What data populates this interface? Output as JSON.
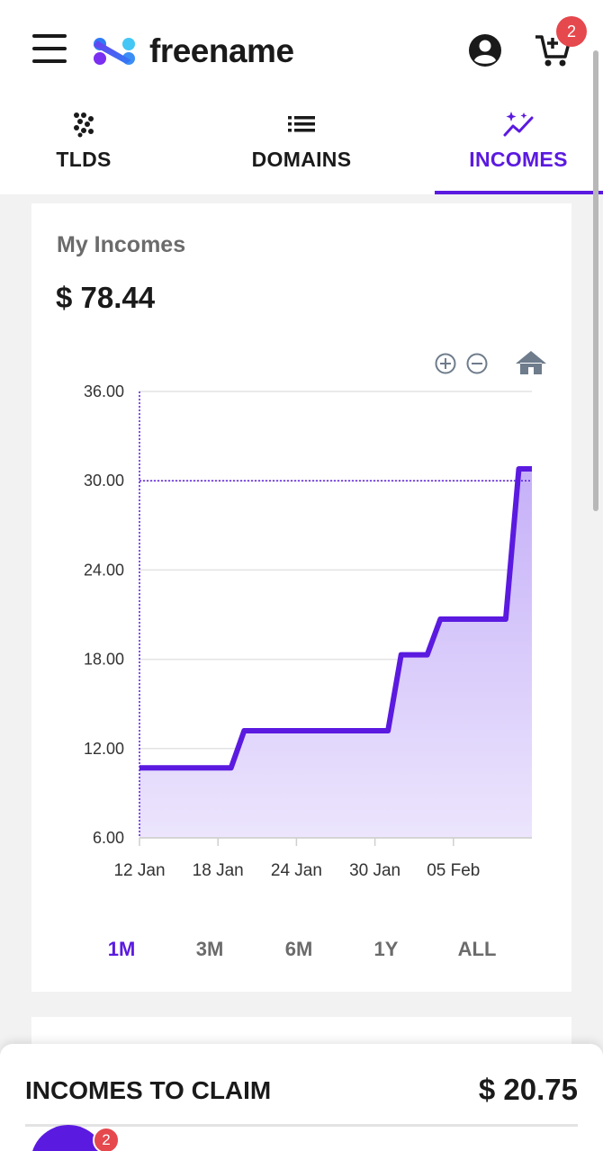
{
  "header": {
    "brand": "freename",
    "cart_count": "2"
  },
  "tabs": [
    {
      "label": "TLDS",
      "icon": "dots-grid-icon",
      "active": false
    },
    {
      "label": "DOMAINS",
      "icon": "list-icon",
      "active": false
    },
    {
      "label": "INCOMES",
      "icon": "sparkle-chart-icon",
      "active": true
    }
  ],
  "incomes": {
    "title": "My Incomes",
    "amount": "$ 78.44"
  },
  "chart_data": {
    "type": "area",
    "title": "",
    "xlabel": "",
    "ylabel": "",
    "ylim": [
      6,
      36
    ],
    "y_ticks": [
      "36.00",
      "30.00",
      "24.00",
      "18.00",
      "12.00",
      "6.00"
    ],
    "x_ticks": [
      "12 Jan",
      "18 Jan",
      "24 Jan",
      "30 Jan",
      "05 Feb"
    ],
    "xlim_days": [
      0,
      30
    ],
    "series": [
      {
        "x": [
          "12 Jan",
          "19 Jan",
          "20 Jan",
          "31 Jan",
          "1 Feb",
          "3 Feb",
          "4 Feb",
          "9 Feb",
          "10 Feb",
          "11 Feb"
        ],
        "x_days": [
          0,
          7,
          8,
          19,
          20,
          22,
          23,
          28,
          29,
          30
        ],
        "y": [
          10.7,
          10.7,
          13.2,
          13.2,
          18.3,
          18.3,
          20.7,
          20.7,
          30.8,
          30.8
        ]
      }
    ],
    "crosshair_y": 30.0,
    "color": "#5b1ae0",
    "fill_top": "#c5b0f8",
    "fill_bottom": "#ece5fd",
    "grid": true
  },
  "chart_toolbar": {
    "zoom_in": "zoom-in-icon",
    "zoom_out": "zoom-out-icon",
    "reset": "home-icon"
  },
  "ranges": [
    {
      "label": "1M",
      "active": true
    },
    {
      "label": "3M",
      "active": false
    },
    {
      "label": "6M",
      "active": false
    },
    {
      "label": "1Y",
      "active": false
    },
    {
      "label": "ALL",
      "active": false
    }
  ],
  "claim": {
    "label": "INCOMES TO CLAIM",
    "value": "$ 20.75"
  },
  "chat": {
    "badge": "2"
  }
}
